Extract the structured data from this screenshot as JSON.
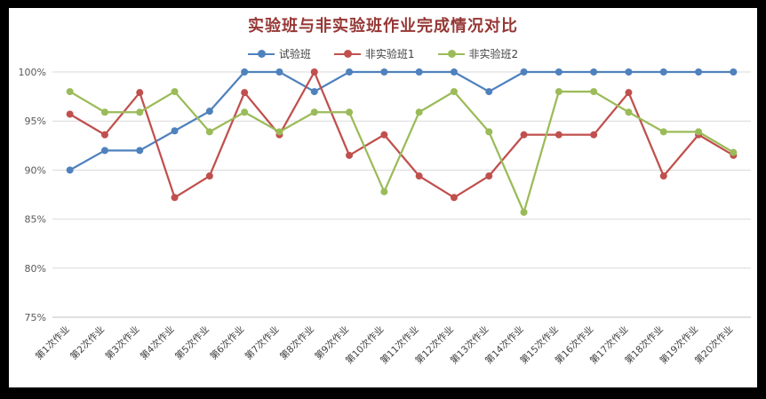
{
  "chart_data": {
    "type": "line",
    "title": "实验班与非实验班作业完成情况对比",
    "title_color": "#953735",
    "legend_position": "top",
    "grid": true,
    "ylim": [
      75,
      100
    ],
    "y_ticks": [
      75,
      80,
      85,
      90,
      95,
      100
    ],
    "y_tick_suffix": "%",
    "categories": [
      "第1次作业",
      "第2次作业",
      "第3次作业",
      "第4次作业",
      "第5次作业",
      "第6次作业",
      "第7次作业",
      "第8次作业",
      "第9次作业",
      "第10次作业",
      "第11次作业",
      "第12次作业",
      "第13次作业",
      "第14次作业",
      "第15次作业",
      "第16次作业",
      "第17次作业",
      "第18次作业",
      "第19次作业",
      "第20次作业"
    ],
    "series": [
      {
        "name": "试验班",
        "color": "#4F81BD",
        "values": [
          90,
          92,
          92,
          94,
          96,
          100,
          100,
          98,
          100,
          100,
          100,
          100,
          98,
          100,
          100,
          100,
          100,
          100,
          100,
          100
        ]
      },
      {
        "name": "非实验班1",
        "color": "#C0504D",
        "values": [
          95.7,
          93.6,
          97.9,
          87.2,
          89.4,
          97.9,
          93.6,
          100,
          91.5,
          93.6,
          89.4,
          87.2,
          89.4,
          93.6,
          93.6,
          93.6,
          97.9,
          89.4,
          93.6,
          91.5
        ]
      },
      {
        "name": "非实验班2",
        "color": "#9BBB59",
        "values": [
          98,
          95.9,
          95.9,
          98,
          93.9,
          95.9,
          93.9,
          95.9,
          95.9,
          87.8,
          95.9,
          98,
          93.9,
          85.7,
          98,
          98,
          95.9,
          93.9,
          93.9,
          91.8
        ]
      }
    ],
    "colors": {
      "gridline": "#D9D9D9",
      "axis_line": "#BFBFBF",
      "y_tick_label": "#595959",
      "x_tick_label": "#404040"
    }
  }
}
